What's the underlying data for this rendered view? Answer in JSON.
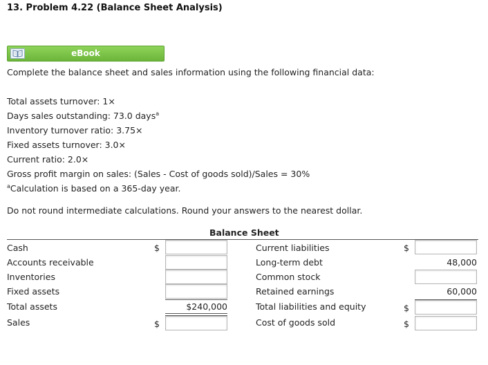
{
  "problem": {
    "title": "13. Problem 4.22 (Balance Sheet Analysis)"
  },
  "ebook": {
    "label": "eBook",
    "icon": "book-icon"
  },
  "instructions": {
    "intro": "Complete the balance sheet and sales information using the following financial data:",
    "data_lines": [
      "Total assets turnover: 1×",
      "Days sales outstanding: 73.0 days",
      "Inventory turnover ratio: 3.75×",
      "Fixed assets turnover: 3.0×",
      "Current ratio: 2.0×",
      "Gross profit margin on sales: (Sales - Cost of goods sold)/Sales = 30%"
    ],
    "footnote_marker": "a",
    "footnote": "Calculation is based on a 365-day year.",
    "rounding_note": "Do not round intermediate calculations. Round your answers to the nearest dollar."
  },
  "balance_sheet": {
    "title": "Balance Sheet",
    "currency_symbol": "$",
    "left_rows": [
      {
        "label": "Cash",
        "value": ""
      },
      {
        "label": "Accounts receivable",
        "value": ""
      },
      {
        "label": "Inventories",
        "value": ""
      },
      {
        "label": "Fixed assets",
        "value": ""
      },
      {
        "label": "Total assets",
        "value": "$240,000"
      },
      {
        "label": "Sales",
        "value": ""
      }
    ],
    "right_rows": [
      {
        "label": "Current liabilities",
        "value": ""
      },
      {
        "label": "Long-term debt",
        "value": "48,000"
      },
      {
        "label": "Common stock",
        "value": ""
      },
      {
        "label": "Retained earnings",
        "value": "60,000"
      },
      {
        "label": "Total liabilities and equity",
        "value": ""
      },
      {
        "label": "Cost of goods sold",
        "value": ""
      }
    ]
  }
}
